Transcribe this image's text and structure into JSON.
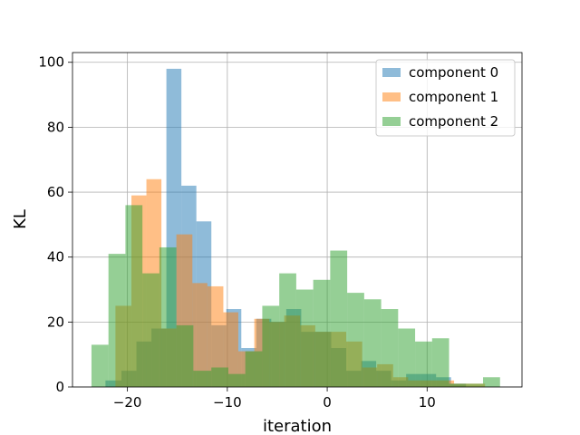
{
  "chart_data": {
    "type": "histogram",
    "xlabel": "iteration",
    "ylabel": "KL",
    "xlim": [
      -25.5,
      19.5
    ],
    "ylim": [
      0,
      103
    ],
    "xticks": [
      -20,
      -10,
      0,
      10
    ],
    "xtick_labels": [
      "−20",
      "−10",
      "0",
      "10"
    ],
    "yticks": [
      0,
      20,
      40,
      60,
      80,
      100
    ],
    "ytick_labels": [
      "0",
      "20",
      "40",
      "60",
      "80",
      "100"
    ],
    "grid": true,
    "legend_position": "top-right",
    "series": [
      {
        "name": "component 0",
        "color": "#1f77b4",
        "opacity": 0.5,
        "bins": [
          [
            -22.2,
            -20.6,
            2
          ],
          [
            -20.6,
            -19.1,
            5
          ],
          [
            -19.1,
            -17.6,
            14
          ],
          [
            -17.6,
            -16.1,
            18
          ],
          [
            -16.1,
            -14.6,
            98
          ],
          [
            -14.6,
            -13.1,
            62
          ],
          [
            -13.1,
            -11.6,
            51
          ],
          [
            -11.6,
            -10.1,
            19
          ],
          [
            -10.1,
            -8.6,
            24
          ],
          [
            -8.6,
            -7.1,
            12
          ],
          [
            -7.1,
            -5.6,
            21
          ],
          [
            -5.6,
            -4.1,
            20
          ],
          [
            -4.1,
            -2.6,
            24
          ],
          [
            -2.6,
            -1.1,
            17
          ],
          [
            -1.1,
            0.4,
            17
          ],
          [
            0.4,
            1.9,
            12
          ],
          [
            1.9,
            3.4,
            5
          ],
          [
            3.4,
            4.9,
            8
          ],
          [
            4.9,
            6.4,
            5
          ],
          [
            6.4,
            7.9,
            2
          ],
          [
            7.9,
            9.4,
            4
          ],
          [
            9.4,
            10.9,
            4
          ],
          [
            10.9,
            12.4,
            3
          ],
          [
            12.4,
            13.9,
            1
          ]
        ]
      },
      {
        "name": "component 1",
        "color": "#ff7f0e",
        "opacity": 0.5,
        "bins": [
          [
            -21.2,
            -19.6,
            25
          ],
          [
            -19.6,
            -18.1,
            59
          ],
          [
            -18.1,
            -16.6,
            64
          ],
          [
            -16.6,
            -15.1,
            18
          ],
          [
            -15.1,
            -13.5,
            47
          ],
          [
            -13.5,
            -12.0,
            32
          ],
          [
            -12.0,
            -10.4,
            31
          ],
          [
            -10.4,
            -8.9,
            23
          ],
          [
            -8.9,
            -7.3,
            11
          ],
          [
            -7.3,
            -5.8,
            21
          ],
          [
            -5.8,
            -4.3,
            20
          ],
          [
            -4.3,
            -2.7,
            22
          ],
          [
            -2.7,
            -1.2,
            19
          ],
          [
            -1.2,
            0.4,
            17
          ],
          [
            0.4,
            1.9,
            17
          ],
          [
            1.9,
            3.5,
            14
          ],
          [
            3.5,
            5.0,
            6
          ],
          [
            5.0,
            6.6,
            7
          ],
          [
            6.6,
            8.1,
            3
          ],
          [
            8.1,
            9.7,
            2
          ],
          [
            9.7,
            11.2,
            2
          ],
          [
            11.2,
            12.7,
            2
          ],
          [
            12.7,
            14.3,
            1
          ],
          [
            14.3,
            15.8,
            1
          ]
        ]
      },
      {
        "name": "component 2",
        "color": "#2ca02c",
        "opacity": 0.5,
        "bins": [
          [
            -23.6,
            -21.9,
            13
          ],
          [
            -21.9,
            -20.2,
            41
          ],
          [
            -20.2,
            -18.5,
            56
          ],
          [
            -18.5,
            -16.8,
            35
          ],
          [
            -16.8,
            -15.1,
            43
          ],
          [
            -15.1,
            -13.4,
            19
          ],
          [
            -13.4,
            -11.6,
            5
          ],
          [
            -11.6,
            -9.9,
            6
          ],
          [
            -9.9,
            -8.2,
            4
          ],
          [
            -8.2,
            -6.5,
            11
          ],
          [
            -6.5,
            -4.8,
            25
          ],
          [
            -4.8,
            -3.1,
            35
          ],
          [
            -3.1,
            -1.4,
            30
          ],
          [
            -1.4,
            0.3,
            33
          ],
          [
            0.3,
            2.0,
            42
          ],
          [
            2.0,
            3.7,
            29
          ],
          [
            3.7,
            5.4,
            27
          ],
          [
            5.4,
            7.1,
            24
          ],
          [
            7.1,
            8.8,
            18
          ],
          [
            8.8,
            10.5,
            14
          ],
          [
            10.5,
            12.2,
            15
          ],
          [
            12.2,
            13.9,
            1
          ],
          [
            13.9,
            15.6,
            1
          ],
          [
            15.6,
            17.3,
            3
          ]
        ]
      }
    ]
  }
}
